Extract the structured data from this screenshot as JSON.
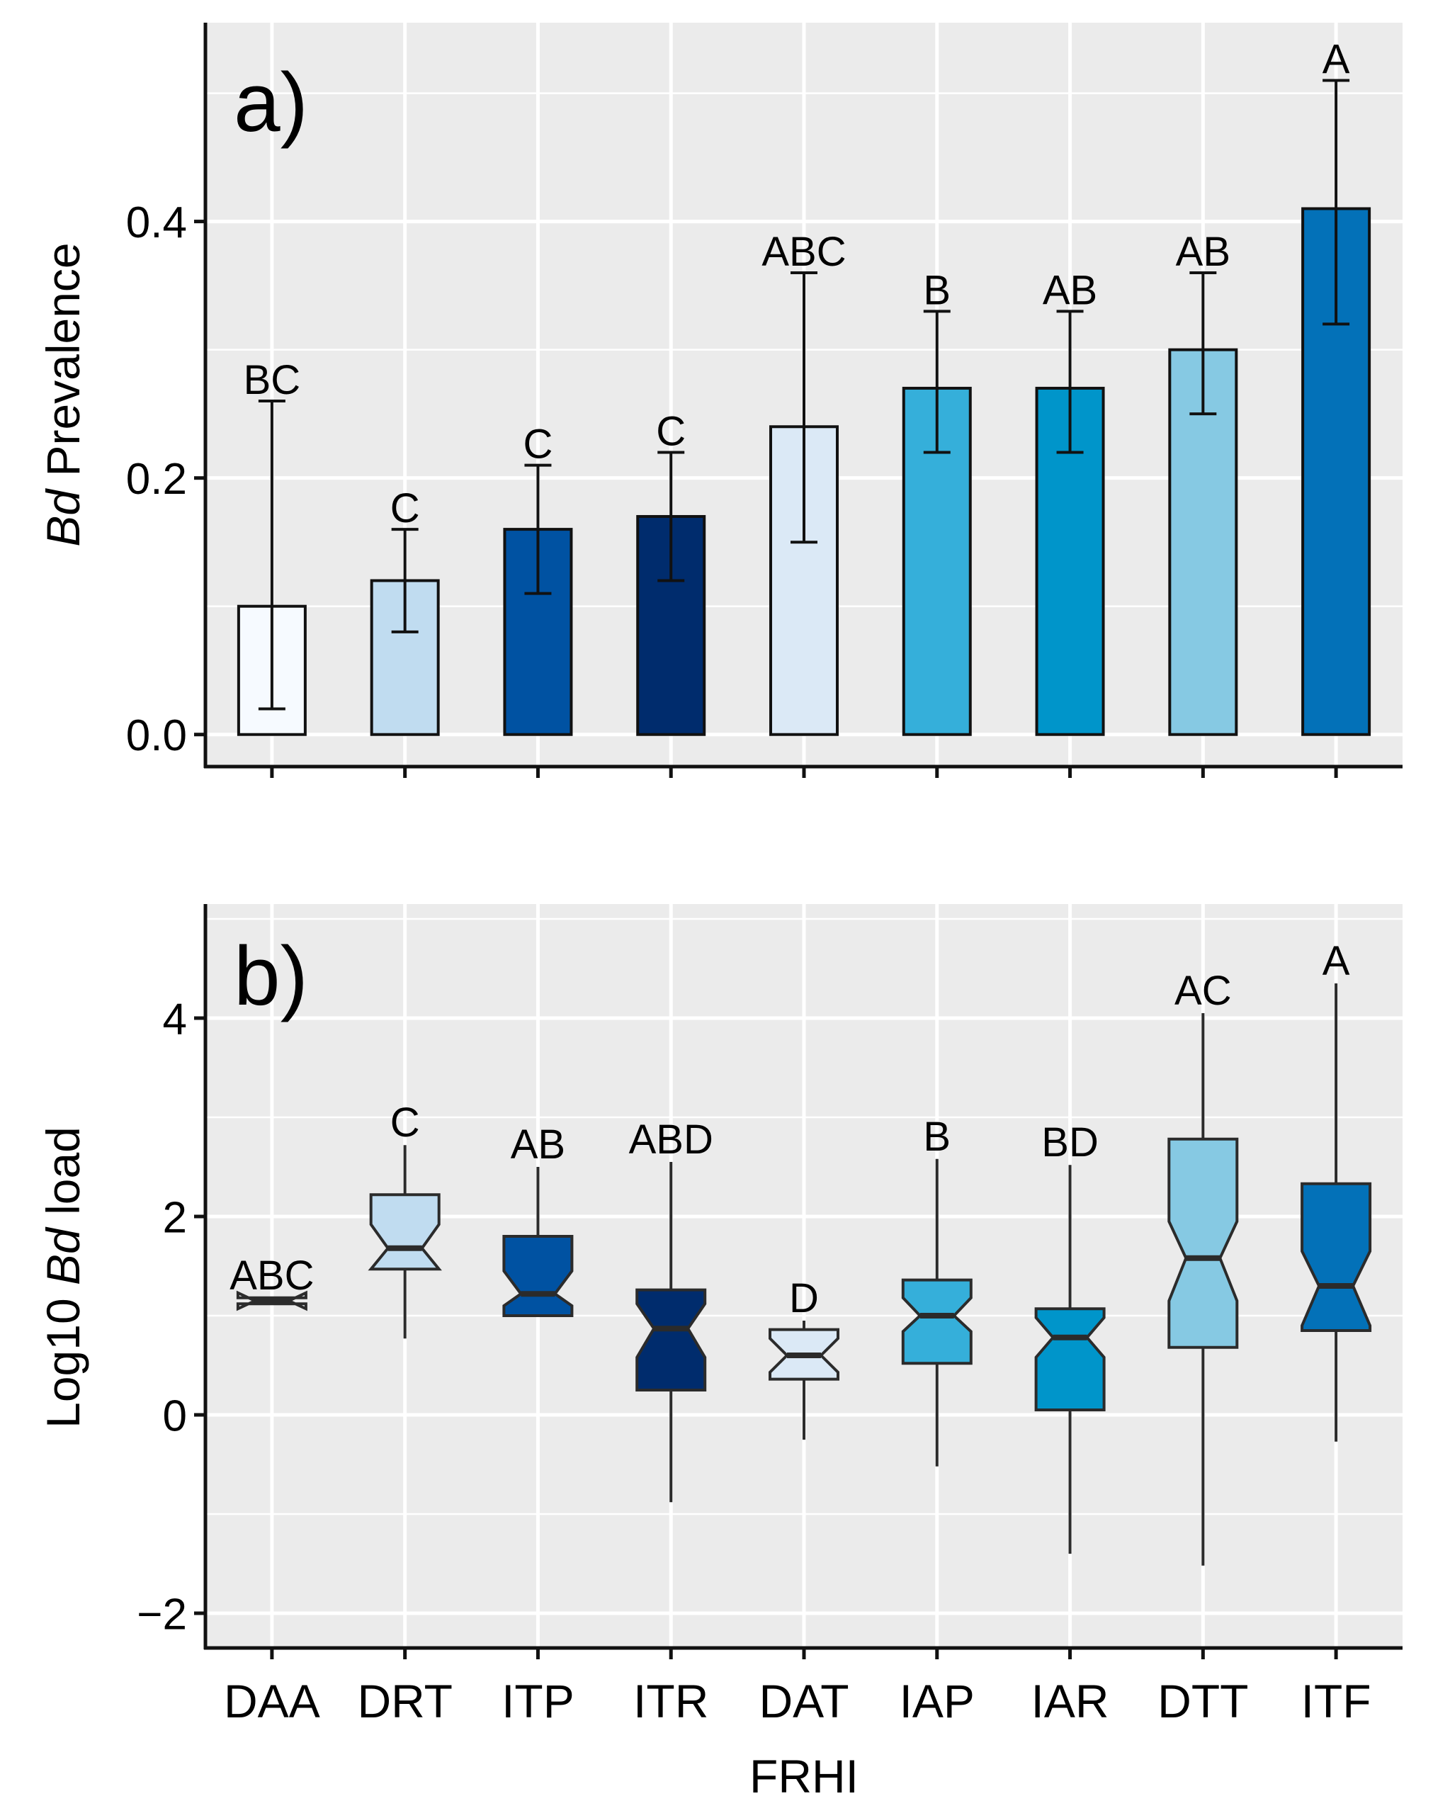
{
  "chart_data": [
    {
      "type": "bar",
      "panel_label": "a)",
      "title": "",
      "xlabel": "",
      "ylabel_italic": "Bd",
      "ylabel_rest": " Prevalence",
      "categories": [
        "DAA",
        "DRT",
        "ITP",
        "ITR",
        "DAT",
        "IAP",
        "IAR",
        "DTT",
        "ITF"
      ],
      "values": [
        0.1,
        0.12,
        0.16,
        0.17,
        0.24,
        0.27,
        0.27,
        0.3,
        0.41
      ],
      "error_low": [
        0.02,
        0.08,
        0.11,
        0.12,
        0.15,
        0.22,
        0.22,
        0.25,
        0.32
      ],
      "error_high": [
        0.26,
        0.16,
        0.21,
        0.22,
        0.36,
        0.33,
        0.33,
        0.36,
        0.51
      ],
      "letters": [
        "BC",
        "C",
        "C",
        "C",
        "ABC",
        "B",
        "AB",
        "AB",
        "A"
      ],
      "ylim": [
        -0.025,
        0.555
      ],
      "yticks": [
        0.0,
        0.2,
        0.4
      ],
      "ytick_labels": [
        "0.0",
        "0.2",
        "0.4"
      ],
      "grid": true
    },
    {
      "type": "box",
      "panel_label": "b)",
      "title": "",
      "xlabel": "FRHI",
      "ylabel_prefix": "Log10 ",
      "ylabel_italic": "Bd",
      "ylabel_suffix": " load",
      "categories": [
        "DAA",
        "DRT",
        "ITP",
        "ITR",
        "DAT",
        "IAP",
        "IAR",
        "DTT",
        "ITF"
      ],
      "boxes": [
        {
          "whisker_low": 1.12,
          "q1": 1.12,
          "median": 1.15,
          "q3": 1.18,
          "whisker_high": 1.18,
          "notch_low": 1.07,
          "notch_high": 1.23
        },
        {
          "whisker_low": 0.77,
          "q1": 1.47,
          "median": 1.68,
          "q3": 2.22,
          "whisker_high": 2.72,
          "notch_low": 1.47,
          "notch_high": 1.92
        },
        {
          "whisker_low": 1.0,
          "q1": 1.0,
          "median": 1.22,
          "q3": 1.8,
          "whisker_high": 2.5,
          "notch_low": 1.1,
          "notch_high": 1.45
        },
        {
          "whisker_low": -0.88,
          "q1": 0.25,
          "median": 0.87,
          "q3": 1.26,
          "whisker_high": 2.55,
          "notch_low": 0.58,
          "notch_high": 1.12
        },
        {
          "whisker_low": -0.25,
          "q1": 0.36,
          "median": 0.6,
          "q3": 0.86,
          "whisker_high": 0.95,
          "notch_low": 0.43,
          "notch_high": 0.77
        },
        {
          "whisker_low": -0.52,
          "q1": 0.52,
          "median": 1.0,
          "q3": 1.36,
          "whisker_high": 2.58,
          "notch_low": 0.84,
          "notch_high": 1.18
        },
        {
          "whisker_low": -1.4,
          "q1": 0.05,
          "median": 0.78,
          "q3": 1.07,
          "whisker_high": 2.52,
          "notch_low": 0.58,
          "notch_high": 0.98
        },
        {
          "whisker_low": -1.52,
          "q1": 0.68,
          "median": 1.58,
          "q3": 2.78,
          "whisker_high": 4.05,
          "notch_low": 1.15,
          "notch_high": 1.95
        },
        {
          "whisker_low": -0.27,
          "q1": 0.85,
          "median": 1.3,
          "q3": 2.33,
          "whisker_high": 4.35,
          "notch_low": 0.9,
          "notch_high": 1.65
        }
      ],
      "letters": [
        "ABC",
        "C",
        "AB",
        "ABD",
        "D",
        "B",
        "BD",
        "AC",
        "A"
      ],
      "ylim": [
        -2.35,
        5.15
      ],
      "yticks": [
        -2,
        0,
        2,
        4
      ],
      "ytick_labels": [
        "−2",
        "0",
        "2",
        "4"
      ],
      "grid": true
    }
  ],
  "colors": {
    "panel_background": "#ebebeb",
    "gridline": "#ffffff",
    "outline": "#111111",
    "box_outline": "#2b2b2b",
    "fills": [
      "#f6faff",
      "#c0dcf0",
      "#0052a2",
      "#002c6d",
      "#dbe9f6",
      "#35afda",
      "#0095ca",
      "#86c9e3",
      "#0371b8"
    ]
  }
}
